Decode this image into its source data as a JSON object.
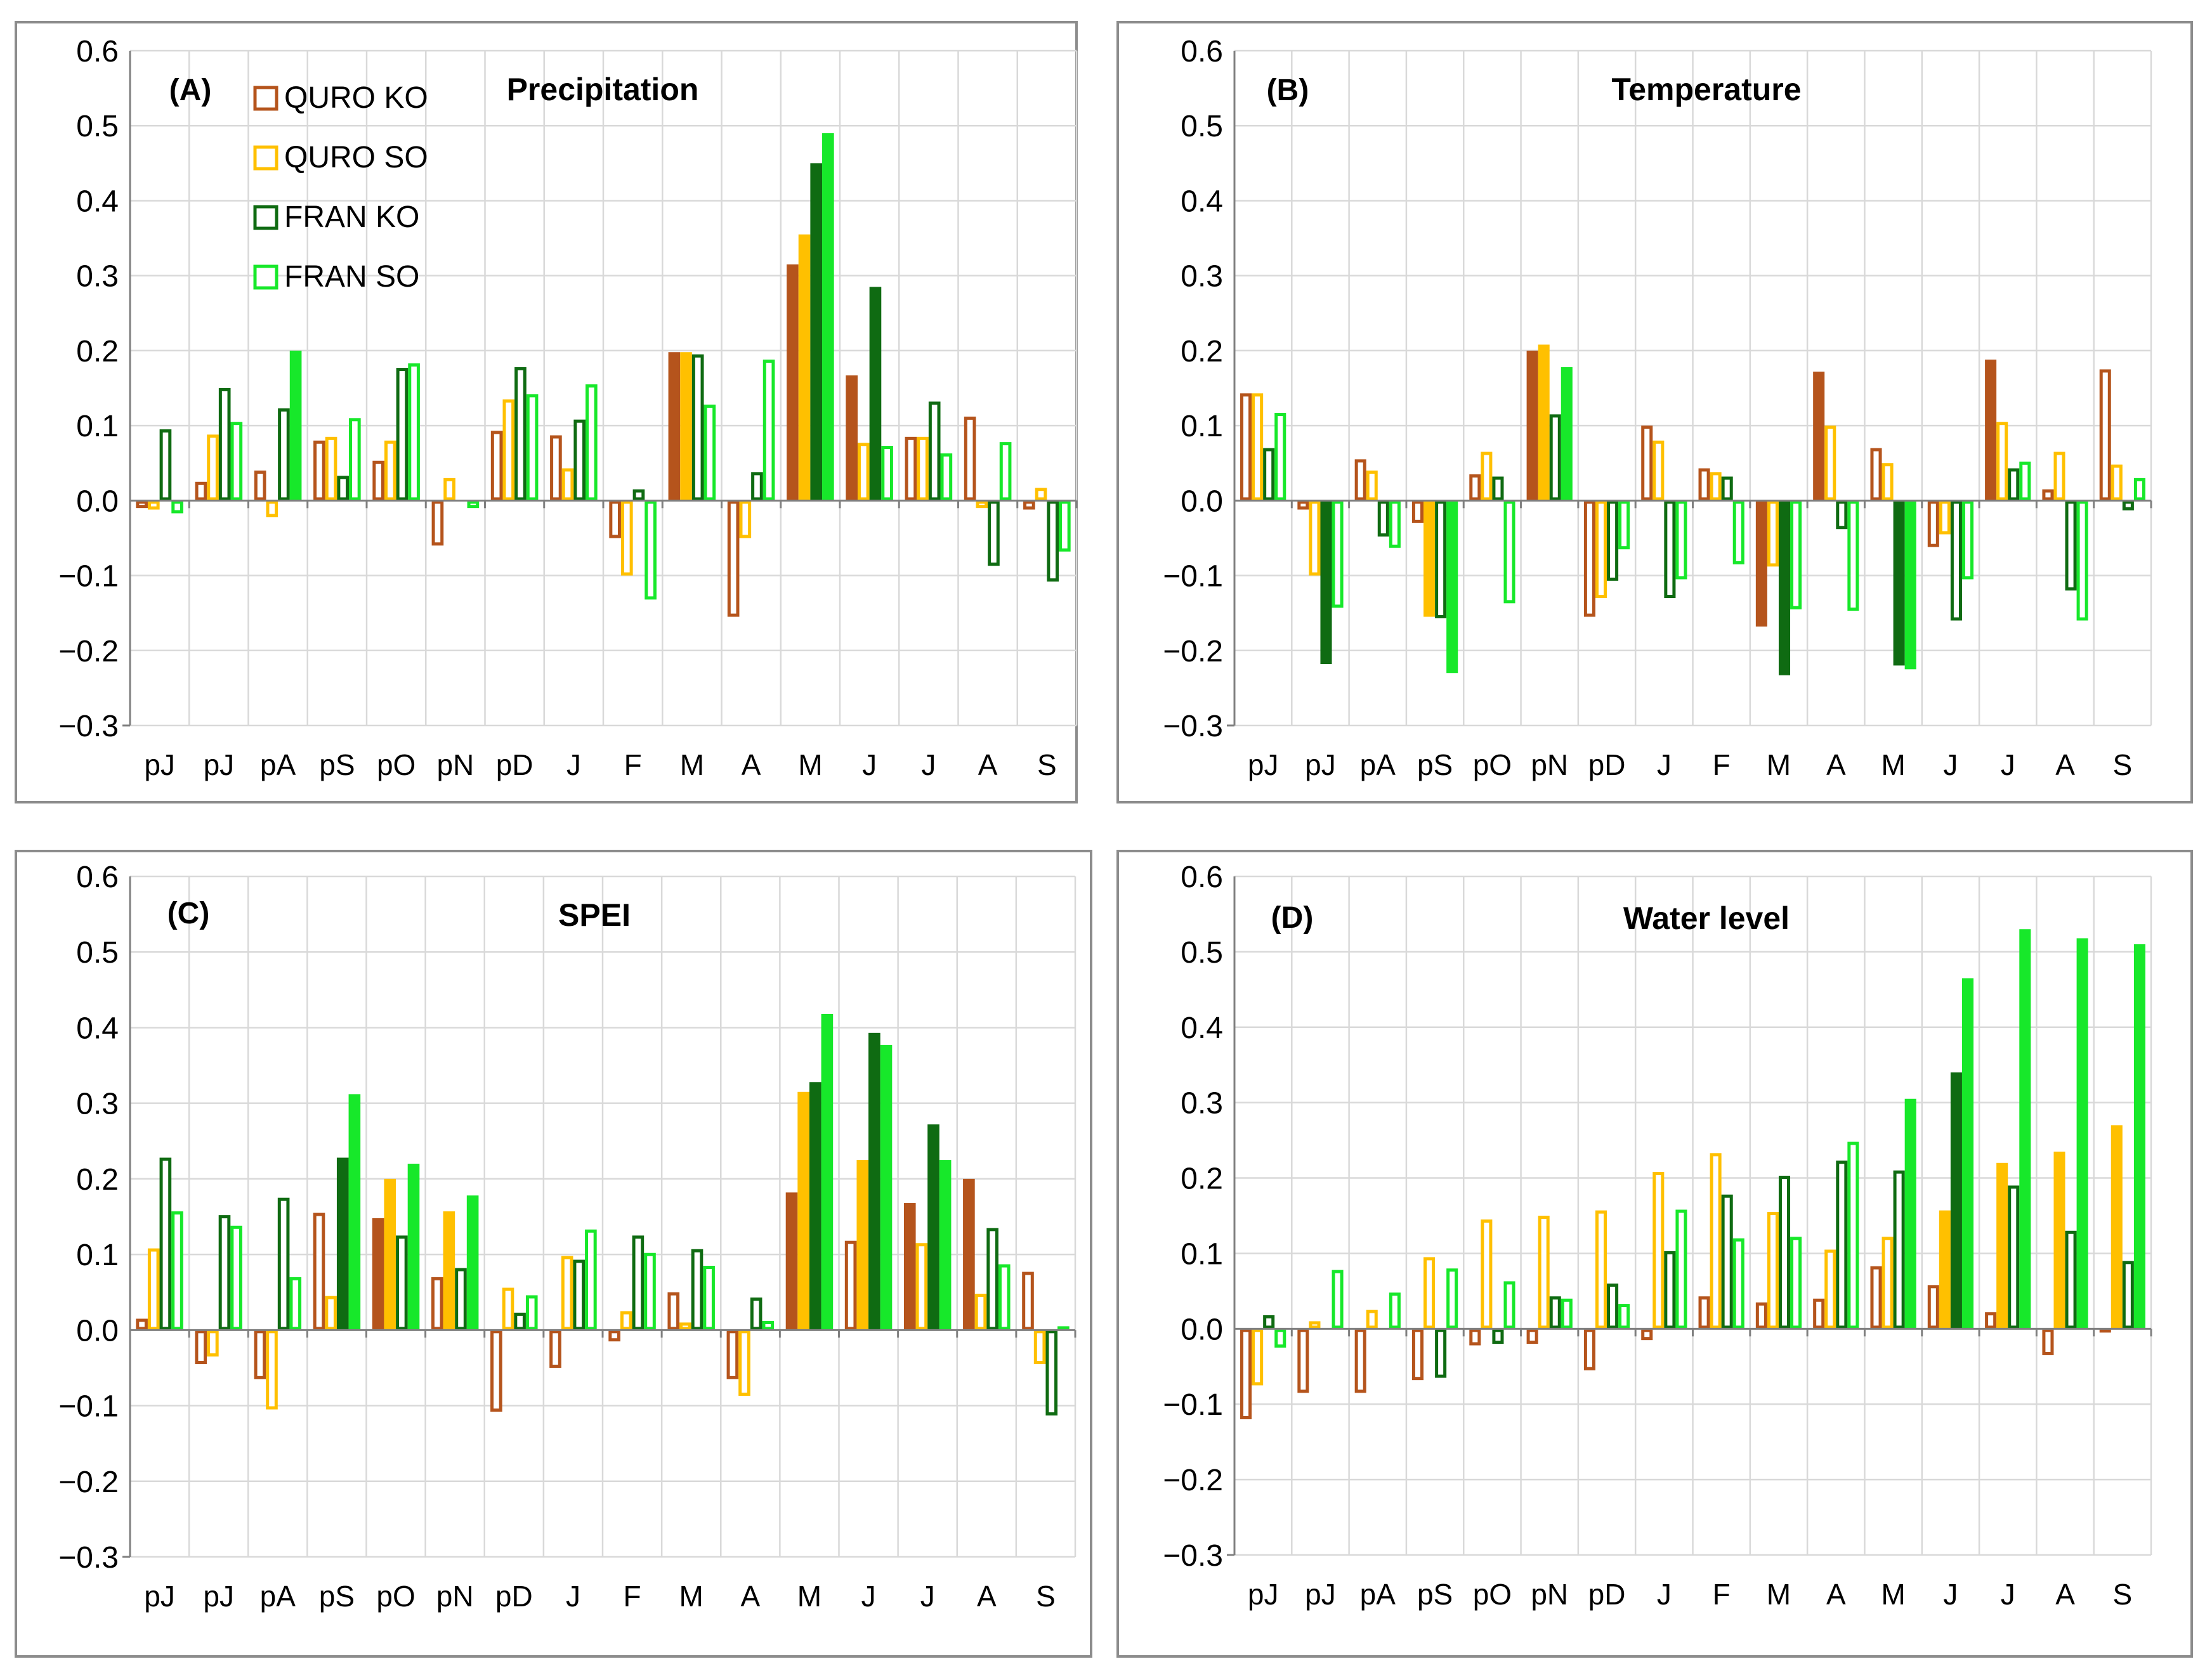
{
  "series_colors": {
    "QURO KO": "#b5541c",
    "QURO SO": "#ffc000",
    "FRAN KO": "#0f6b12",
    "FRAN SO": "#17e82a"
  },
  "legend": [
    "QURO KO",
    "QURO SO",
    "FRAN KO",
    "FRAN SO"
  ],
  "chart_data": [
    {
      "type": "bar",
      "panel": "(A)",
      "title": "Precipitation",
      "categories": [
        "pJ",
        "pJ",
        "pA",
        "pS",
        "pO",
        "pN",
        "pD",
        "J",
        "F",
        "M",
        "A",
        "M",
        "J",
        "J",
        "A",
        "S"
      ],
      "ylim": [
        -0.3,
        0.6
      ],
      "yticks": [
        "0.6",
        "0.5",
        "0.4",
        "0.3",
        "0.2",
        "0.1",
        "0.0",
        "−0.1",
        "−0.2",
        "−0.3"
      ],
      "series": [
        {
          "name": "QURO KO",
          "values": [
            -0.01,
            0.025,
            0.04,
            0.08,
            0.053,
            -0.06,
            0.093,
            0.087,
            -0.05,
            0.198,
            -0.155,
            0.315,
            0.167,
            0.085,
            0.112,
            -0.012
          ],
          "significant": [
            0,
            0,
            0,
            0,
            0,
            0,
            0,
            0,
            0,
            1,
            0,
            1,
            1,
            0,
            0,
            0
          ]
        },
        {
          "name": "QURO SO",
          "values": [
            -0.012,
            0.088,
            -0.022,
            0.085,
            0.08,
            0.03,
            0.135,
            0.043,
            -0.1,
            0.198,
            -0.05,
            0.355,
            0.077,
            0.085,
            -0.01,
            0.017
          ],
          "significant": [
            0,
            0,
            0,
            0,
            0,
            0,
            0,
            0,
            0,
            1,
            0,
            1,
            0,
            0,
            0,
            0
          ]
        },
        {
          "name": "FRAN KO",
          "values": [
            0.095,
            0.15,
            0.123,
            0.033,
            0.177,
            0.0,
            0.178,
            0.108,
            0.015,
            0.195,
            0.038,
            0.45,
            0.285,
            0.132,
            -0.087,
            -0.108
          ],
          "significant": [
            0,
            0,
            0,
            0,
            0,
            0,
            0,
            0,
            0,
            0,
            0,
            1,
            1,
            0,
            0,
            0
          ]
        },
        {
          "name": "FRAN SO",
          "values": [
            -0.017,
            0.105,
            0.2,
            0.11,
            0.183,
            -0.01,
            0.142,
            0.155,
            -0.132,
            0.128,
            0.188,
            0.49,
            0.073,
            0.063,
            0.078,
            -0.068
          ],
          "significant": [
            0,
            0,
            1,
            0,
            0,
            0,
            0,
            0,
            0,
            0,
            0,
            1,
            0,
            0,
            0,
            0
          ]
        }
      ]
    },
    {
      "type": "bar",
      "panel": "(B)",
      "title": "Temperature",
      "categories": [
        "pJ",
        "pJ",
        "pA",
        "pS",
        "pO",
        "pN",
        "pD",
        "J",
        "F",
        "M",
        "A",
        "M",
        "J",
        "J",
        "A",
        "S"
      ],
      "ylim": [
        -0.3,
        0.6
      ],
      "yticks": [
        "0.6",
        "0.5",
        "0.4",
        "0.3",
        "0.2",
        "0.1",
        "0.0",
        "−0.1",
        "−0.2",
        "−0.3"
      ],
      "series": [
        {
          "name": "QURO KO",
          "values": [
            0.143,
            -0.012,
            0.055,
            -0.03,
            0.035,
            0.2,
            -0.155,
            0.1,
            0.043,
            -0.168,
            0.172,
            0.07,
            -0.062,
            0.188,
            0.015,
            0.175
          ],
          "significant": [
            0,
            0,
            0,
            0,
            0,
            1,
            0,
            0,
            0,
            1,
            1,
            0,
            0,
            1,
            0,
            0
          ]
        },
        {
          "name": "QURO SO",
          "values": [
            0.143,
            -0.1,
            0.04,
            -0.155,
            0.065,
            0.208,
            -0.13,
            0.08,
            0.038,
            -0.088,
            0.1,
            0.05,
            -0.045,
            0.105,
            0.065,
            0.048
          ],
          "significant": [
            0,
            0,
            0,
            1,
            0,
            1,
            0,
            0,
            0,
            0,
            0,
            0,
            0,
            0,
            0,
            0
          ]
        },
        {
          "name": "FRAN KO",
          "values": [
            0.07,
            -0.218,
            -0.048,
            -0.157,
            0.032,
            0.115,
            -0.107,
            -0.13,
            0.032,
            -0.233,
            -0.038,
            -0.22,
            -0.16,
            0.043,
            -0.12,
            -0.013
          ],
          "significant": [
            0,
            1,
            0,
            0,
            0,
            0,
            0,
            0,
            0,
            1,
            0,
            1,
            0,
            0,
            0,
            0
          ]
        },
        {
          "name": "FRAN SO",
          "values": [
            0.117,
            -0.143,
            -0.063,
            -0.23,
            -0.137,
            0.178,
            -0.065,
            -0.105,
            -0.085,
            -0.145,
            -0.147,
            -0.225,
            -0.105,
            0.052,
            -0.16,
            0.03
          ],
          "significant": [
            0,
            0,
            0,
            1,
            0,
            1,
            0,
            0,
            0,
            0,
            0,
            1,
            0,
            0,
            0,
            0
          ]
        }
      ]
    },
    {
      "type": "bar",
      "panel": "(C)",
      "title": "SPEI",
      "categories": [
        "pJ",
        "pJ",
        "pA",
        "pS",
        "pO",
        "pN",
        "pD",
        "J",
        "F",
        "M",
        "A",
        "M",
        "J",
        "J",
        "A",
        "S"
      ],
      "ylim": [
        -0.3,
        0.6
      ],
      "yticks": [
        "0.6",
        "0.5",
        "0.4",
        "0.3",
        "0.2",
        "0.1",
        "0.0",
        "−0.1",
        "−0.2",
        "−0.3"
      ],
      "series": [
        {
          "name": "QURO KO",
          "values": [
            0.015,
            -0.045,
            -0.065,
            0.155,
            0.148,
            0.07,
            -0.108,
            -0.05,
            -0.015,
            0.05,
            -0.065,
            0.182,
            0.118,
            0.168,
            0.2,
            0.077
          ],
          "significant": [
            0,
            0,
            0,
            0,
            1,
            0,
            0,
            0,
            0,
            0,
            0,
            1,
            0,
            1,
            1,
            0
          ]
        },
        {
          "name": "QURO SO",
          "values": [
            0.108,
            -0.035,
            -0.105,
            0.045,
            0.2,
            0.157,
            0.056,
            0.098,
            0.025,
            0.01,
            -0.087,
            0.315,
            0.225,
            0.115,
            0.048,
            -0.045
          ],
          "significant": [
            0,
            0,
            0,
            0,
            1,
            1,
            0,
            0,
            0,
            0,
            0,
            1,
            1,
            0,
            0,
            0
          ]
        },
        {
          "name": "FRAN KO",
          "values": [
            0.228,
            0.152,
            0.175,
            0.228,
            0.125,
            0.082,
            0.023,
            0.093,
            0.125,
            0.107,
            0.043,
            0.328,
            0.393,
            0.272,
            0.135,
            -0.113
          ],
          "significant": [
            0,
            0,
            0,
            1,
            0,
            0,
            0,
            0,
            0,
            0,
            0,
            1,
            1,
            1,
            0,
            0
          ]
        },
        {
          "name": "FRAN SO",
          "values": [
            0.157,
            0.138,
            0.07,
            0.312,
            0.22,
            0.178,
            0.046,
            0.133,
            0.102,
            0.085,
            0.012,
            0.418,
            0.377,
            0.225,
            0.087,
            0.005
          ],
          "significant": [
            0,
            0,
            0,
            1,
            1,
            1,
            0,
            0,
            0,
            0,
            0,
            1,
            1,
            1,
            0,
            0
          ]
        }
      ]
    },
    {
      "type": "bar",
      "panel": "(D)",
      "title": "Water level",
      "categories": [
        "pJ",
        "pJ",
        "pA",
        "pS",
        "pO",
        "pN",
        "pD",
        "J",
        "F",
        "M",
        "A",
        "M",
        "J",
        "J",
        "A",
        "S"
      ],
      "ylim": [
        -0.3,
        0.6
      ],
      "yticks": [
        "0.6",
        "0.5",
        "0.4",
        "0.3",
        "0.2",
        "0.1",
        "0.0",
        "−0.1",
        "−0.2",
        "−0.3"
      ],
      "series": [
        {
          "name": "QURO KO",
          "values": [
            -0.12,
            -0.085,
            -0.085,
            -0.068,
            -0.022,
            -0.02,
            -0.055,
            -0.015,
            0.043,
            0.035,
            0.04,
            0.083,
            0.058,
            0.022,
            -0.035,
            -0.005
          ],
          "significant": [
            0,
            0,
            0,
            0,
            0,
            0,
            0,
            0,
            0,
            0,
            0,
            0,
            0,
            0,
            0,
            0
          ]
        },
        {
          "name": "QURO SO",
          "values": [
            -0.075,
            0.01,
            0.025,
            0.095,
            0.145,
            0.15,
            0.157,
            0.208,
            0.233,
            0.155,
            0.105,
            0.122,
            0.157,
            0.22,
            0.235,
            0.27
          ],
          "significant": [
            0,
            0,
            0,
            0,
            0,
            0,
            0,
            0,
            0,
            0,
            0,
            0,
            1,
            1,
            1,
            1
          ]
        },
        {
          "name": "FRAN KO",
          "values": [
            0.018,
            0.0,
            0.0,
            -0.065,
            -0.02,
            0.043,
            0.06,
            0.103,
            0.178,
            0.203,
            0.223,
            0.21,
            0.34,
            0.19,
            0.13,
            0.09
          ],
          "significant": [
            0,
            0,
            0,
            0,
            0,
            0,
            0,
            0,
            0,
            0,
            0,
            0,
            1,
            0,
            0,
            0
          ]
        },
        {
          "name": "FRAN SO",
          "values": [
            -0.025,
            0.078,
            0.048,
            0.08,
            0.063,
            0.04,
            0.033,
            0.158,
            0.12,
            0.122,
            0.248,
            0.305,
            0.465,
            0.53,
            0.518,
            0.51
          ],
          "significant": [
            0,
            0,
            0,
            0,
            0,
            0,
            0,
            0,
            0,
            0,
            0,
            1,
            1,
            1,
            1,
            1
          ]
        }
      ]
    }
  ]
}
